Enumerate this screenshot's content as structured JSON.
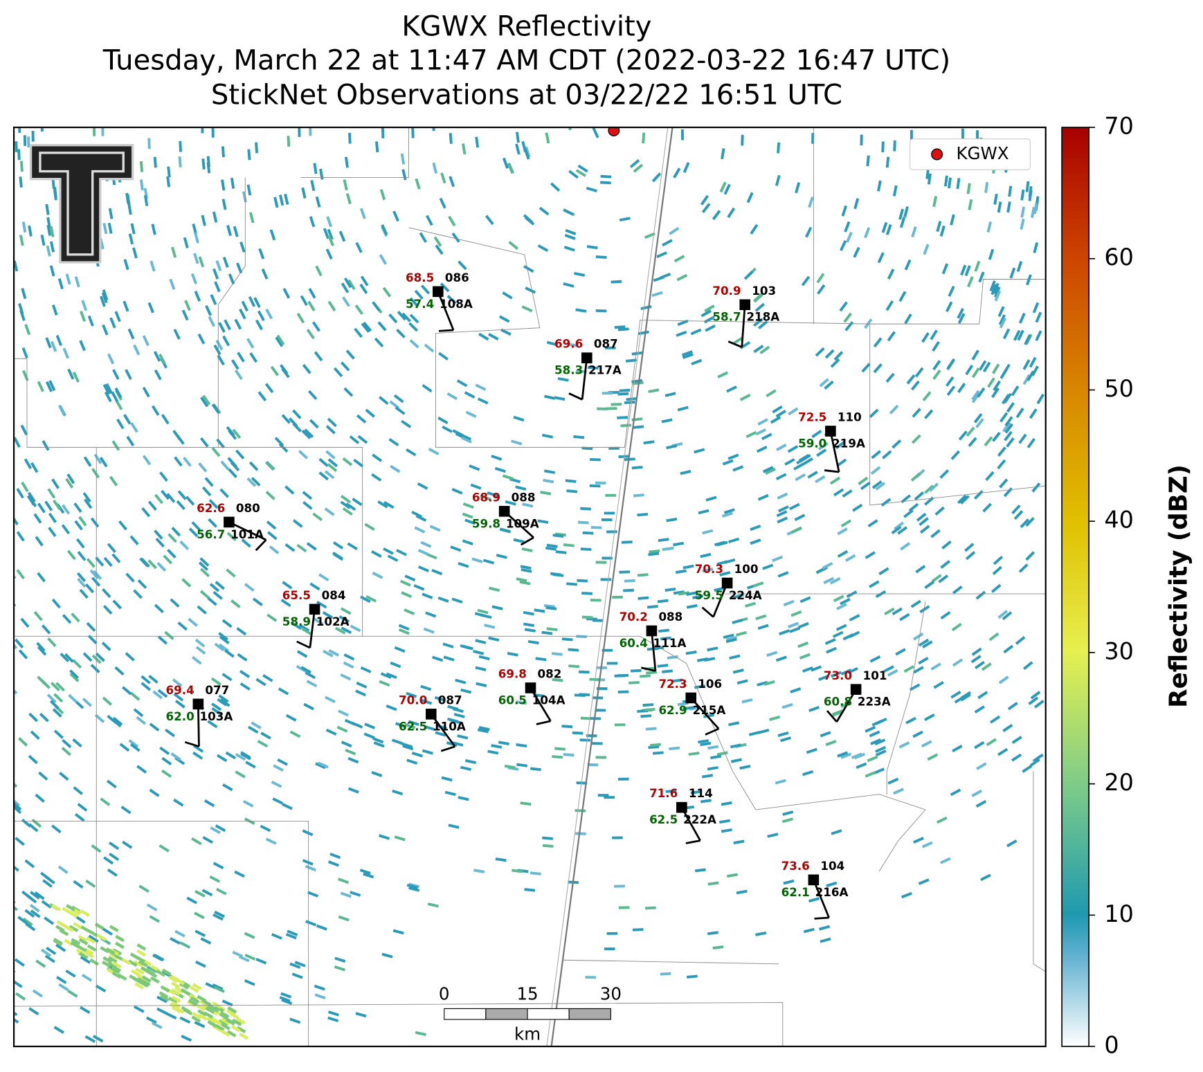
{
  "header": {
    "title": "KGWX Reflectivity",
    "subtitle": "Tuesday, March 22 at 11:47 AM CDT (2022-03-22 16:47 UTC)",
    "observations": "StickNet Observations at 03/22/22 16:51 UTC"
  },
  "legend": {
    "label": "KGWX"
  },
  "scale_bar": {
    "ticks": [
      0,
      15,
      30
    ],
    "unit": "km"
  },
  "colorbar": {
    "label": "Reflectivity (dBZ)",
    "range": [
      0,
      70
    ],
    "ticks": [
      0,
      10,
      20,
      30,
      40,
      50,
      60,
      70
    ]
  },
  "stations": [
    {
      "temperature": "68.5",
      "dewpoint": "57.4",
      "pressure": "086",
      "id": "108A"
    },
    {
      "temperature": "69.6",
      "dewpoint": "58.3",
      "pressure": "087",
      "id": "217A"
    },
    {
      "temperature": "70.9",
      "dewpoint": "58.7",
      "pressure": "103",
      "id": "218A"
    },
    {
      "temperature": "72.5",
      "dewpoint": "59.0",
      "pressure": "110",
      "id": "219A"
    },
    {
      "temperature": "62.6",
      "dewpoint": "56.7",
      "pressure": "080",
      "id": "101A"
    },
    {
      "temperature": "68.9",
      "dewpoint": "59.8",
      "pressure": "088",
      "id": "109A"
    },
    {
      "temperature": "70.3",
      "dewpoint": "59.5",
      "pressure": "100",
      "id": "224A"
    },
    {
      "temperature": "65.5",
      "dewpoint": "58.9",
      "pressure": "084",
      "id": "102A"
    },
    {
      "temperature": "70.2",
      "dewpoint": "60.4",
      "pressure": "088",
      "id": "111A"
    },
    {
      "temperature": "69.4",
      "dewpoint": "62.0",
      "pressure": "077",
      "id": "103A"
    },
    {
      "temperature": "70.0",
      "dewpoint": "62.5",
      "pressure": "087",
      "id": "110A"
    },
    {
      "temperature": "69.8",
      "dewpoint": "60.5",
      "pressure": "082",
      "id": "104A"
    },
    {
      "temperature": "72.3",
      "dewpoint": "62.9",
      "pressure": "106",
      "id": "215A"
    },
    {
      "temperature": "73.0",
      "dewpoint": "60.8",
      "pressure": "101",
      "id": "223A"
    },
    {
      "temperature": "71.6",
      "dewpoint": "62.5",
      "pressure": "114",
      "id": "222A"
    },
    {
      "temperature": "73.6",
      "dewpoint": "62.1",
      "pressure": "104",
      "id": "216A"
    }
  ]
}
